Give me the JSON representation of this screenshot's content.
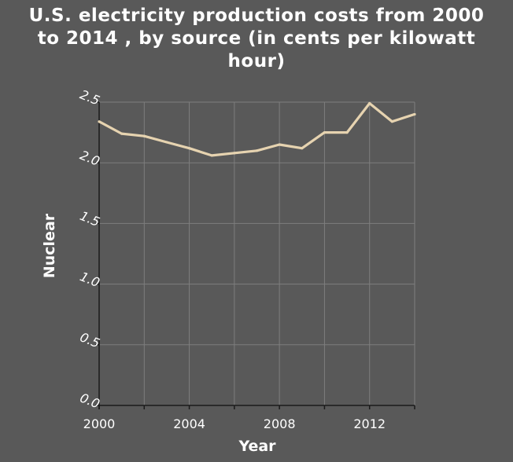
{
  "chart_data": {
    "type": "line",
    "title_lines": [
      "U.S. electricity production costs from 2000",
      "to 2014 , by source (in cents per kilowatt",
      "hour)"
    ],
    "xlabel": "Year",
    "ylabel": "Nuclear",
    "xlim": [
      2000,
      2014
    ],
    "ylim": [
      0.0,
      2.5
    ],
    "x_ticks": [
      2000,
      2004,
      2008,
      2012
    ],
    "y_ticks": [
      "0.0",
      "0.5",
      "1.0",
      "1.5",
      "2.0",
      "2.5"
    ],
    "grid": true,
    "series": [
      {
        "color": "#e6d3b0",
        "x": [
          2000,
          2001,
          2002,
          2003,
          2004,
          2005,
          2006,
          2007,
          2008,
          2009,
          2010,
          2011,
          2012,
          2013,
          2014
        ],
        "y": [
          2.34,
          2.24,
          2.22,
          2.17,
          2.12,
          2.06,
          2.08,
          2.1,
          2.15,
          2.12,
          2.25,
          2.25,
          2.49,
          2.34,
          2.4
        ]
      }
    ]
  }
}
